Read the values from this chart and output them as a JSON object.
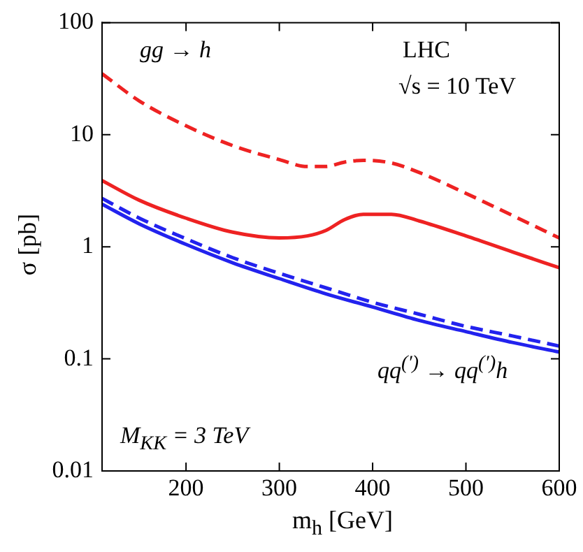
{
  "chart_data": {
    "type": "line",
    "xlabel": "m$_{h}$  [GeV]",
    "ylabel": "σ  [pb]",
    "log": "y",
    "xlim": [
      110,
      600
    ],
    "xticks": [
      200,
      300,
      400,
      500,
      600
    ],
    "ylim": [
      0.01,
      100
    ],
    "yticks": [
      0.01,
      0.1,
      1,
      10,
      100
    ],
    "grid": false,
    "legend": false,
    "marker": "none",
    "annotations": [
      "gg → h",
      "LHC",
      "√s  = 10 TeV",
      "qq$^{(′)}$ → qq$^{(′)}$h",
      "M$_{KK}$ = 3 TeV"
    ],
    "series": [
      {
        "color": "#ee2222",
        "line_style": "dashed",
        "x": [
          110,
          150,
          200,
          250,
          300,
          330,
          350,
          370,
          390,
          420,
          450,
          500,
          550,
          600
        ],
        "values": [
          35,
          20,
          12,
          8,
          6,
          5.2,
          5.2,
          5.7,
          5.9,
          5.6,
          4.6,
          3.0,
          1.9,
          1.2
        ]
      },
      {
        "color": "#ee2222",
        "line_style": "solid",
        "x": [
          110,
          150,
          200,
          250,
          300,
          330,
          350,
          370,
          390,
          420,
          450,
          500,
          550,
          600
        ],
        "values": [
          3.9,
          2.6,
          1.8,
          1.35,
          1.2,
          1.25,
          1.4,
          1.75,
          1.95,
          1.95,
          1.7,
          1.25,
          0.9,
          0.65
        ]
      },
      {
        "color": "#2222ee",
        "line_style": "dashed",
        "x": [
          110,
          150,
          200,
          250,
          300,
          350,
          400,
          450,
          500,
          550,
          600
        ],
        "values": [
          2.7,
          1.8,
          1.18,
          0.8,
          0.58,
          0.43,
          0.32,
          0.25,
          0.195,
          0.16,
          0.13
        ]
      },
      {
        "color": "#2222ee",
        "line_style": "solid",
        "x": [
          110,
          150,
          200,
          250,
          300,
          350,
          400,
          450,
          500,
          550,
          600
        ],
        "values": [
          2.4,
          1.6,
          1.05,
          0.72,
          0.52,
          0.38,
          0.29,
          0.22,
          0.175,
          0.14,
          0.115
        ]
      }
    ]
  }
}
